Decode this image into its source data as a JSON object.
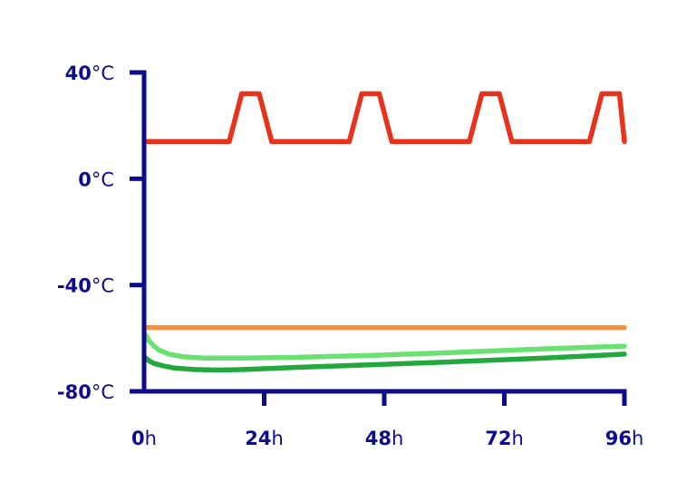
{
  "chart_data": {
    "type": "line",
    "title": "",
    "xlabel": "",
    "ylabel": "",
    "xlim": [
      0,
      96
    ],
    "ylim": [
      -80,
      40
    ],
    "x_ticks": [
      {
        "value": 0,
        "num": "0",
        "unit": "h"
      },
      {
        "value": 24,
        "num": "24",
        "unit": "h"
      },
      {
        "value": 48,
        "num": "48",
        "unit": "h"
      },
      {
        "value": 72,
        "num": "72",
        "unit": "h"
      },
      {
        "value": 96,
        "num": "96",
        "unit": "h"
      }
    ],
    "y_ticks": [
      {
        "value": 40,
        "num": "40",
        "unit": "°C"
      },
      {
        "value": 0,
        "num": "0",
        "unit": "°C"
      },
      {
        "value": -40,
        "num": "-40",
        "unit": "°C"
      },
      {
        "value": -80,
        "num": "-80",
        "unit": "°C"
      }
    ],
    "grid": false,
    "legend": "none",
    "series": [
      {
        "color": "#e8321c",
        "x": [
          0,
          17,
          19.5,
          23,
          25.5,
          41,
          43.5,
          47,
          49.5,
          65,
          67.5,
          71,
          73.5,
          89,
          91.5,
          95,
          96
        ],
        "y": [
          14,
          14,
          32,
          32,
          14,
          14,
          32,
          32,
          14,
          14,
          32,
          32,
          14,
          14,
          32,
          32,
          14
        ]
      },
      {
        "color": "#f7913b",
        "x": [
          0,
          96
        ],
        "y": [
          -56,
          -56
        ]
      },
      {
        "color": "#6be073",
        "x": [
          0,
          1,
          2,
          3,
          5,
          8,
          12,
          20,
          30,
          45,
          60,
          80,
          96
        ],
        "y": [
          -58,
          -61,
          -63,
          -64.5,
          -66,
          -67,
          -67.5,
          -67.5,
          -67.2,
          -66.5,
          -65.5,
          -64,
          -63
        ]
      },
      {
        "color": "#22a83c",
        "x": [
          0,
          1,
          2,
          4,
          6,
          10,
          15,
          20,
          30,
          45,
          60,
          80,
          96
        ],
        "y": [
          -67,
          -68.5,
          -69.5,
          -70.5,
          -71.2,
          -71.8,
          -72,
          -71.8,
          -71,
          -70,
          -69,
          -67.5,
          -66
        ]
      }
    ]
  }
}
